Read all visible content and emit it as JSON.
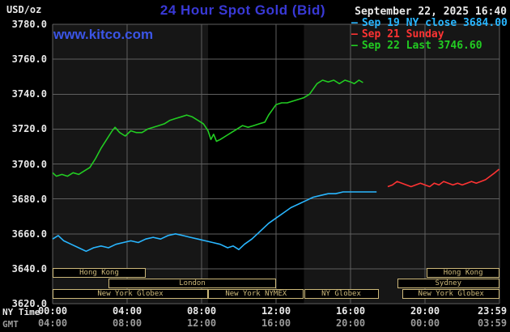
{
  "colors": {
    "background": "#000000",
    "plot_bg": "#161616",
    "band": "#000000",
    "grid": "#5f5f5f",
    "title": "#3939d6",
    "link": "#3b55e6",
    "text_white": "#e8e8e8",
    "text_gray": "#9a9a9a",
    "session": "#cdb97a",
    "cyan": "#29b6ff",
    "red": "#ff3333",
    "green": "#22cc22"
  },
  "header": {
    "unit": "USD/oz",
    "title": "24 Hour Spot Gold (Bid)",
    "datetime": "September 22, 2025 16:40",
    "watermark": "www.kitco.com"
  },
  "legend": [
    {
      "marker": "–",
      "label": "Sep 19 NY close 3684.00",
      "color": "#29b6ff"
    },
    {
      "marker": "–",
      "label": "Sep 21 Sunday",
      "color": "#ff3333"
    },
    {
      "marker": "–",
      "label": "Sep 22 Last 3746.60",
      "color": "#22cc22"
    }
  ],
  "axes": {
    "ny_label": "NY Time",
    "gmt_label": "GMT",
    "y_ticks": [
      {
        "v": 3780,
        "label": "3780.0"
      },
      {
        "v": 3760,
        "label": "3760.0"
      },
      {
        "v": 3740,
        "label": "3740.0"
      },
      {
        "v": 3720,
        "label": "3720.0"
      },
      {
        "v": 3700,
        "label": "3700.0"
      },
      {
        "v": 3680,
        "label": "3680.0"
      },
      {
        "v": 3660,
        "label": "3660.0"
      },
      {
        "v": 3640,
        "label": "3640.0"
      },
      {
        "v": 3620,
        "label": "3620.0"
      }
    ],
    "x_ticks": [
      {
        "h": 0,
        "ny": "00:00",
        "gmt": "04:00"
      },
      {
        "h": 4,
        "ny": "04:00",
        "gmt": "08:00"
      },
      {
        "h": 8,
        "ny": "08:00",
        "gmt": "12:00"
      },
      {
        "h": 12,
        "ny": "12:00",
        "gmt": "16:00"
      },
      {
        "h": 16,
        "ny": "16:00",
        "gmt": "20:00"
      },
      {
        "h": 20,
        "ny": "20:00",
        "gmt": "00:00"
      },
      {
        "h": 24,
        "ny": "23:59",
        "gmt": "03:59"
      }
    ]
  },
  "sessions": [
    {
      "row": 0,
      "start": 0,
      "end": 5.0,
      "label": "Hong Kong"
    },
    {
      "row": 0,
      "start": 20.1,
      "end": 24,
      "label": "Hong Kong"
    },
    {
      "row": 1,
      "start": 3.0,
      "end": 12.0,
      "label": "London"
    },
    {
      "row": 1,
      "start": 18.5,
      "end": 24,
      "label": "Sydney"
    },
    {
      "row": 2,
      "start": 0,
      "end": 8.35,
      "label": "New York Globex"
    },
    {
      "row": 2,
      "start": 8.35,
      "end": 13.5,
      "label": "New York NYMEX"
    },
    {
      "row": 2,
      "start": 13.5,
      "end": 17.5,
      "label": "NY Globex"
    },
    {
      "row": 2,
      "start": 18.8,
      "end": 24,
      "label": "New York Globex"
    }
  ],
  "chart_data": {
    "type": "line",
    "title": "24 Hour Spot Gold (Bid)",
    "ylabel": "USD/oz",
    "xlabel": "NY Time (hours 0-24)",
    "xlim": [
      0,
      24
    ],
    "ylim": [
      3620,
      3780
    ],
    "grid": true,
    "legend_position": "top-right",
    "shaded_band_hours": [
      8.35,
      13.5
    ],
    "series": [
      {
        "id": "sep19",
        "name": "Sep 19 NY close 3684.00",
        "color": "#29b6ff",
        "points": [
          [
            0,
            3657
          ],
          [
            0.3,
            3659
          ],
          [
            0.6,
            3656
          ],
          [
            1.0,
            3654
          ],
          [
            1.4,
            3652
          ],
          [
            1.8,
            3650
          ],
          [
            2.2,
            3652
          ],
          [
            2.6,
            3653
          ],
          [
            3.0,
            3652
          ],
          [
            3.4,
            3654
          ],
          [
            3.8,
            3655
          ],
          [
            4.2,
            3656
          ],
          [
            4.6,
            3655
          ],
          [
            5.0,
            3657
          ],
          [
            5.4,
            3658
          ],
          [
            5.8,
            3657
          ],
          [
            6.2,
            3659
          ],
          [
            6.6,
            3660
          ],
          [
            7.0,
            3659
          ],
          [
            7.4,
            3658
          ],
          [
            7.8,
            3657
          ],
          [
            8.2,
            3656
          ],
          [
            8.6,
            3655
          ],
          [
            9.0,
            3654
          ],
          [
            9.4,
            3652
          ],
          [
            9.7,
            3653
          ],
          [
            10.0,
            3651
          ],
          [
            10.3,
            3654
          ],
          [
            10.7,
            3657
          ],
          [
            11.0,
            3660
          ],
          [
            11.3,
            3663
          ],
          [
            11.6,
            3666
          ],
          [
            12.0,
            3669
          ],
          [
            12.4,
            3672
          ],
          [
            12.8,
            3675
          ],
          [
            13.2,
            3677
          ],
          [
            13.6,
            3679
          ],
          [
            14.0,
            3681
          ],
          [
            14.4,
            3682
          ],
          [
            14.8,
            3683
          ],
          [
            15.2,
            3683
          ],
          [
            15.6,
            3684
          ],
          [
            16.0,
            3684
          ],
          [
            16.5,
            3684
          ],
          [
            17.0,
            3684
          ],
          [
            17.4,
            3684
          ]
        ]
      },
      {
        "id": "sep21",
        "name": "Sep 21 Sunday",
        "color": "#ff3333",
        "points": [
          [
            18.0,
            3687
          ],
          [
            18.25,
            3688
          ],
          [
            18.5,
            3690
          ],
          [
            18.75,
            3689
          ],
          [
            19.0,
            3688
          ],
          [
            19.25,
            3687
          ],
          [
            19.5,
            3688
          ],
          [
            19.75,
            3689
          ],
          [
            20.0,
            3688
          ],
          [
            20.25,
            3687
          ],
          [
            20.5,
            3689
          ],
          [
            20.75,
            3688
          ],
          [
            21.0,
            3690
          ],
          [
            21.25,
            3689
          ],
          [
            21.5,
            3688
          ],
          [
            21.75,
            3689
          ],
          [
            22.0,
            3688
          ],
          [
            22.25,
            3689
          ],
          [
            22.5,
            3690
          ],
          [
            22.75,
            3689
          ],
          [
            23.0,
            3690
          ],
          [
            23.25,
            3691
          ],
          [
            23.5,
            3693
          ],
          [
            23.75,
            3695
          ],
          [
            23.98,
            3697
          ]
        ]
      },
      {
        "id": "sep22",
        "name": "Sep 22 Last 3746.60",
        "color": "#22cc22",
        "points": [
          [
            0,
            3695
          ],
          [
            0.2,
            3693
          ],
          [
            0.5,
            3694
          ],
          [
            0.8,
            3693
          ],
          [
            1.1,
            3695
          ],
          [
            1.4,
            3694
          ],
          [
            1.7,
            3696
          ],
          [
            2.0,
            3698
          ],
          [
            2.3,
            3703
          ],
          [
            2.6,
            3709
          ],
          [
            2.9,
            3714
          ],
          [
            3.2,
            3719
          ],
          [
            3.35,
            3721
          ],
          [
            3.6,
            3718
          ],
          [
            3.9,
            3716
          ],
          [
            4.2,
            3719
          ],
          [
            4.5,
            3718
          ],
          [
            4.8,
            3718
          ],
          [
            5.1,
            3720
          ],
          [
            5.4,
            3721
          ],
          [
            5.7,
            3722
          ],
          [
            6.0,
            3723
          ],
          [
            6.3,
            3725
          ],
          [
            6.6,
            3726
          ],
          [
            6.9,
            3727
          ],
          [
            7.2,
            3728
          ],
          [
            7.5,
            3727
          ],
          [
            7.8,
            3725
          ],
          [
            8.1,
            3723
          ],
          [
            8.35,
            3719
          ],
          [
            8.5,
            3714
          ],
          [
            8.65,
            3717
          ],
          [
            8.8,
            3713
          ],
          [
            9.0,
            3714
          ],
          [
            9.3,
            3716
          ],
          [
            9.6,
            3718
          ],
          [
            9.9,
            3720
          ],
          [
            10.2,
            3722
          ],
          [
            10.5,
            3721
          ],
          [
            10.8,
            3722
          ],
          [
            11.1,
            3723
          ],
          [
            11.4,
            3724
          ],
          [
            11.6,
            3728
          ],
          [
            11.8,
            3731
          ],
          [
            12.0,
            3734
          ],
          [
            12.3,
            3735
          ],
          [
            12.6,
            3735
          ],
          [
            12.9,
            3736
          ],
          [
            13.2,
            3737
          ],
          [
            13.5,
            3738
          ],
          [
            13.8,
            3740
          ],
          [
            14.0,
            3743
          ],
          [
            14.2,
            3746
          ],
          [
            14.5,
            3748
          ],
          [
            14.8,
            3747
          ],
          [
            15.1,
            3748
          ],
          [
            15.4,
            3746
          ],
          [
            15.7,
            3748
          ],
          [
            16.0,
            3747
          ],
          [
            16.2,
            3746
          ],
          [
            16.45,
            3748
          ],
          [
            16.67,
            3746.6
          ]
        ]
      }
    ]
  }
}
